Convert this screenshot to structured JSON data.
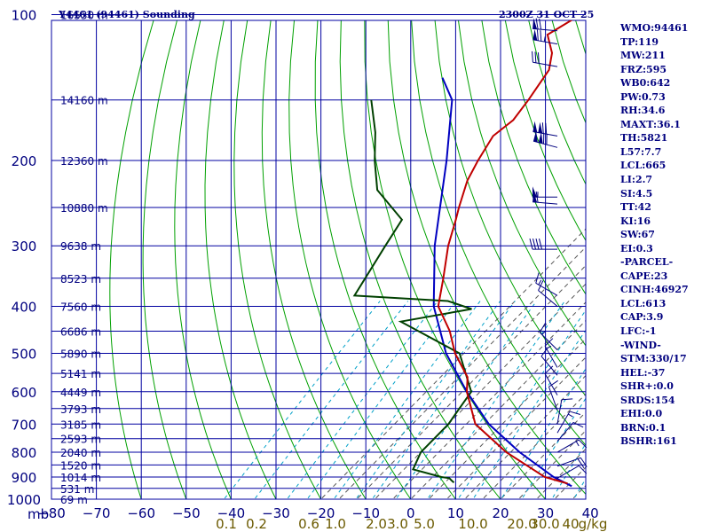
{
  "header": {
    "title_left": "Y4461 (94461) Sounding",
    "title_right": "2300Z 31 OCT 25"
  },
  "indices": [
    "WMO:94461",
    "TP:119",
    "MW:211",
    "FRZ:595",
    "WB0:642",
    "PW:0.73",
    "RH:34.6",
    "MAXT:36.1",
    "TH:5821",
    "L57:7.7",
    "LCL:665",
    "LI:2.7",
    "SI:4.5",
    "TT:42",
    "KI:16",
    "SW:67",
    "EI:0.3",
    "-PARCEL-",
    "CAPE:23",
    "CINH:46927",
    "LCL:613",
    "CAP:3.9",
    "LFC:-1",
    "-WIND-",
    "STM:330/17",
    "HEL:-37",
    "SHR+:0.0",
    "SRDS:154",
    "EHI:0.0",
    "BRN:0.1",
    "BSHR:161"
  ],
  "colors": {
    "grid": "#0000a0",
    "dry_adiabat": "#00a000",
    "moist_adiabat": "#555555",
    "mixing_ratio": "#00a0c8",
    "temperature": "#c00000",
    "dewpoint": "#004000",
    "parcel": "#0000c0",
    "wind": "#00007f",
    "mixing_label": "#6b5a00"
  },
  "chart_data": {
    "type": "skew-t",
    "title": "Y4461 (94461) Sounding",
    "valid_time": "2300Z 31 OCT 25",
    "pressure_axis": {
      "label": "mb",
      "ticks": [
        100,
        200,
        300,
        400,
        500,
        600,
        700,
        800,
        900,
        1000
      ],
      "range": [
        1000,
        100
      ]
    },
    "temperature_axis": {
      "unit": "°C",
      "ticks": [
        -80,
        -70,
        -60,
        -50,
        -40,
        -30,
        -20,
        -10,
        0,
        10,
        20,
        30,
        40
      ],
      "range": [
        -80,
        40
      ]
    },
    "height_labels": [
      {
        "p": 100,
        "text": "16530 m"
      },
      {
        "p": 150,
        "text": "14160 m"
      },
      {
        "p": 200,
        "text": "12360 m"
      },
      {
        "p": 250,
        "text": "10880 m"
      },
      {
        "p": 300,
        "text": "9638 m"
      },
      {
        "p": 350,
        "text": "8523 m"
      },
      {
        "p": 400,
        "text": "7560 m"
      },
      {
        "p": 450,
        "text": "6686 m"
      },
      {
        "p": 500,
        "text": "5890 m"
      },
      {
        "p": 550,
        "text": "5141 m"
      },
      {
        "p": 600,
        "text": "4449 m"
      },
      {
        "p": 650,
        "text": "3793 m"
      },
      {
        "p": 700,
        "text": "3185 m"
      },
      {
        "p": 750,
        "text": "2593 m"
      },
      {
        "p": 800,
        "text": "2040 m"
      },
      {
        "p": 850,
        "text": "1520 m"
      },
      {
        "p": 900,
        "text": "1014 m"
      },
      {
        "p": 950,
        "text": "531 m"
      },
      {
        "p": 1000,
        "text": "69 m"
      }
    ],
    "mixing_ratio_labels": [
      "0.1",
      "0.2",
      "0.6",
      "1.0",
      "2.0",
      "3.0",
      "5.0",
      "10.0",
      "20.0",
      "30.0",
      "40",
      "g/kg"
    ],
    "temperature": [
      [
        928,
        31.5
      ],
      [
        900,
        25
      ],
      [
        800,
        11
      ],
      [
        700,
        -2
      ],
      [
        600,
        -11
      ],
      [
        560,
        -14
      ],
      [
        500,
        -22
      ],
      [
        450,
        -28
      ],
      [
        400,
        -36
      ],
      [
        350,
        -41
      ],
      [
        300,
        -47
      ],
      [
        265,
        -51
      ],
      [
        250,
        -53
      ],
      [
        220,
        -57
      ],
      [
        200,
        -59
      ],
      [
        178,
        -61
      ],
      [
        165,
        -60
      ],
      [
        150,
        -61
      ],
      [
        130,
        -63
      ],
      [
        120,
        -66
      ],
      [
        110,
        -71
      ],
      [
        100,
        -68
      ]
    ],
    "dewpoint": [
      [
        924,
        6
      ],
      [
        915,
        5
      ],
      [
        905,
        4
      ],
      [
        900,
        2
      ],
      [
        868,
        -6
      ],
      [
        800,
        -8
      ],
      [
        700,
        -8
      ],
      [
        650,
        -9
      ],
      [
        600,
        -10
      ],
      [
        500,
        -21
      ],
      [
        430,
        -41
      ],
      [
        405,
        -28
      ],
      [
        390,
        -35
      ],
      [
        380,
        -57
      ],
      [
        300,
        -61
      ],
      [
        265,
        -63
      ],
      [
        230,
        -75
      ],
      [
        200,
        -82
      ],
      [
        175,
        -88
      ],
      [
        150,
        -96
      ]
    ],
    "parcel": [
      [
        940,
        33
      ],
      [
        900,
        27
      ],
      [
        800,
        14
      ],
      [
        700,
        1
      ],
      [
        600,
        -11
      ],
      [
        500,
        -24
      ],
      [
        400,
        -37
      ],
      [
        300,
        -50
      ],
      [
        200,
        -66
      ],
      [
        150,
        -78
      ],
      [
        135,
        -85
      ]
    ],
    "wind_barbs": [
      {
        "p": 108,
        "dir": 275,
        "spd": 70
      },
      {
        "p": 115,
        "dir": 280,
        "spd": 75
      },
      {
        "p": 128,
        "dir": 280,
        "spd": 30
      },
      {
        "p": 178,
        "dir": 280,
        "spd": 120
      },
      {
        "p": 188,
        "dir": 285,
        "spd": 120
      },
      {
        "p": 238,
        "dir": 270,
        "spd": 55
      },
      {
        "p": 246,
        "dir": 275,
        "spd": 60
      },
      {
        "p": 305,
        "dir": 270,
        "spd": 40
      },
      {
        "p": 380,
        "dir": 300,
        "spd": 15
      },
      {
        "p": 400,
        "dir": 310,
        "spd": 10
      },
      {
        "p": 492,
        "dir": 315,
        "spd": 15
      },
      {
        "p": 535,
        "dir": 330,
        "spd": 15
      },
      {
        "p": 555,
        "dir": 320,
        "spd": 10
      },
      {
        "p": 610,
        "dir": 330,
        "spd": 10
      },
      {
        "p": 655,
        "dir": 340,
        "spd": 10
      },
      {
        "p": 700,
        "dir": 10,
        "spd": 10
      },
      {
        "p": 730,
        "dir": 30,
        "spd": 15
      },
      {
        "p": 760,
        "dir": 40,
        "spd": 10
      },
      {
        "p": 800,
        "dir": 60,
        "spd": 15
      },
      {
        "p": 855,
        "dir": 70,
        "spd": 20
      },
      {
        "p": 905,
        "dir": 60,
        "spd": 10
      }
    ]
  }
}
